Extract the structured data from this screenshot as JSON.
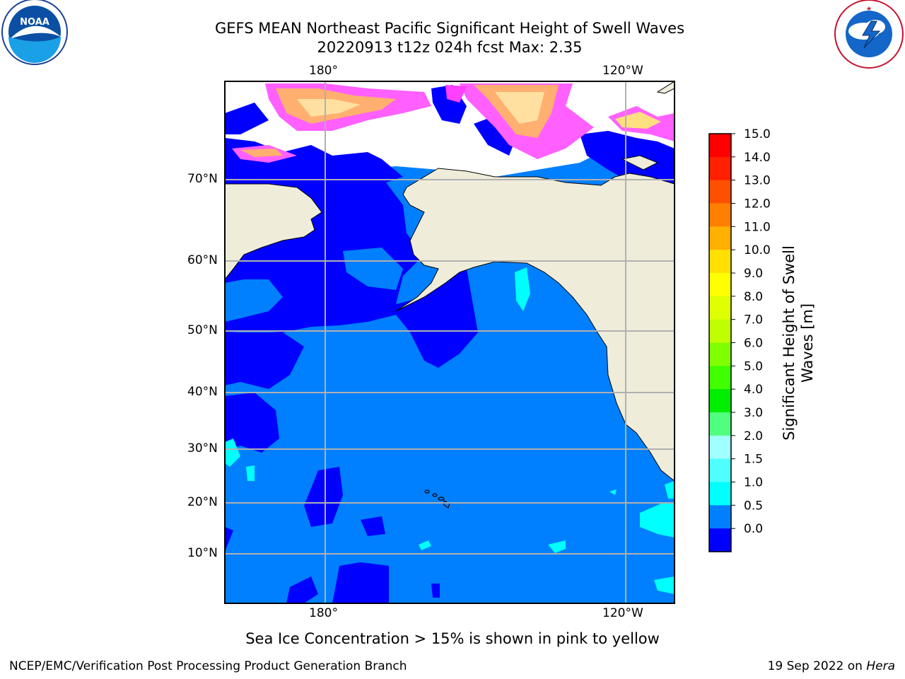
{
  "title": {
    "line1": "GEFS MEAN Northeast Pacific Significant Height of Swell Waves",
    "line2": "20220913 t12z 024h fcst   Max: 2.35"
  },
  "map": {
    "lon_labels_top": [
      "180°",
      "120°W"
    ],
    "lon_labels_bottom": [
      "180°",
      "120°W"
    ],
    "lat_labels": [
      "70°N",
      "60°N",
      "50°N",
      "40°N",
      "30°N",
      "20°N",
      "10°N"
    ],
    "colors": {
      "land": "#efedda",
      "grid": "#b0b0b0",
      "ocean_low": "#0000ff",
      "ocean_mid": "#0080ff",
      "ocean_high": "#00ffff",
      "ice_pink": "#ff40ff",
      "ice_orange": "#ffa070"
    }
  },
  "colorbar": {
    "label": "Significant Height of Swell Waves [m]",
    "label_line1": "Significant Height of Swell",
    "label_line2": "Waves [m]",
    "ticks": [
      "15.0",
      "14.0",
      "13.0",
      "12.0",
      "11.0",
      "10.0",
      "9.0",
      "8.0",
      "7.0",
      "6.0",
      "5.0",
      "4.0",
      "3.0",
      "2.0",
      "1.5",
      "1.0",
      "0.5",
      "0.0"
    ],
    "colors": [
      "#ff0000",
      "#ff2000",
      "#ff5000",
      "#ff8000",
      "#ffb000",
      "#ffe000",
      "#ffff00",
      "#e0ff00",
      "#c0ff00",
      "#80ff00",
      "#40ff00",
      "#00ee00",
      "#50ff80",
      "#a0ffff",
      "#50ffff",
      "#00ffff",
      "#0080ff",
      "#0000ff"
    ]
  },
  "logos": {
    "left": "NOAA",
    "right": "NATIONAL WEATHER SERVICE"
  },
  "caption": "Sea Ice Concentration > 15% is shown in pink to yellow",
  "footer": {
    "left": "NCEP/EMC/Verification Post Processing Product Generation Branch",
    "date": "19 Sep 2022 on ",
    "machine": "Hera"
  }
}
